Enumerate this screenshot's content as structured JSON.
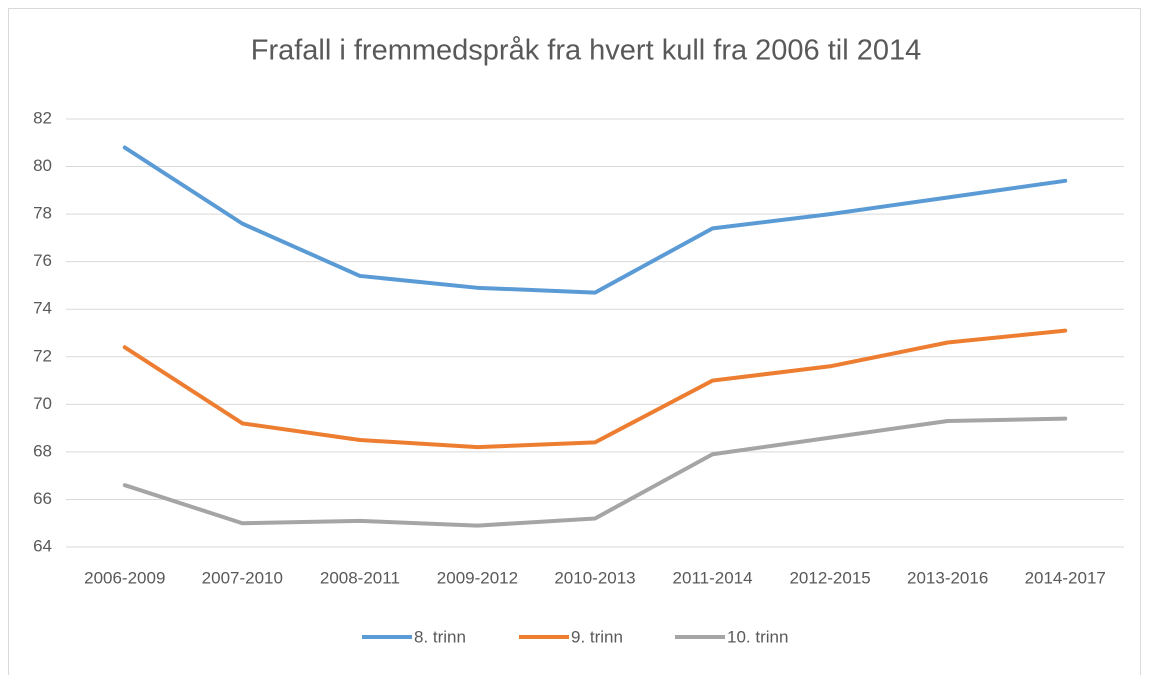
{
  "chart_data": {
    "type": "line",
    "title": "Frafall i fremmedspråk fra hvert kull fra 2006 til 2014",
    "categories": [
      "2006-2009",
      "2007-2010",
      "2008-2011",
      "2009-2012",
      "2010-2013",
      "2011-2014",
      "2012-2015",
      "2013-2016",
      "2014-2017"
    ],
    "series": [
      {
        "name": "8. trinn",
        "color": "#5b9bd5",
        "values": [
          80.8,
          77.6,
          75.4,
          74.9,
          74.7,
          77.4,
          78.0,
          78.7,
          79.4
        ]
      },
      {
        "name": "9. trinn",
        "color": "#ed7d31",
        "values": [
          72.4,
          69.2,
          68.5,
          68.2,
          68.4,
          71.0,
          71.6,
          72.6,
          73.1
        ]
      },
      {
        "name": "10. trinn",
        "color": "#a5a5a5",
        "values": [
          66.6,
          65.0,
          65.1,
          64.9,
          65.2,
          67.9,
          68.6,
          69.3,
          69.4
        ]
      }
    ],
    "ylim": [
      64,
      82
    ],
    "yticks": [
      64,
      66,
      68,
      70,
      72,
      74,
      76,
      78,
      80,
      82
    ],
    "grid": true,
    "legend": "bottom"
  }
}
